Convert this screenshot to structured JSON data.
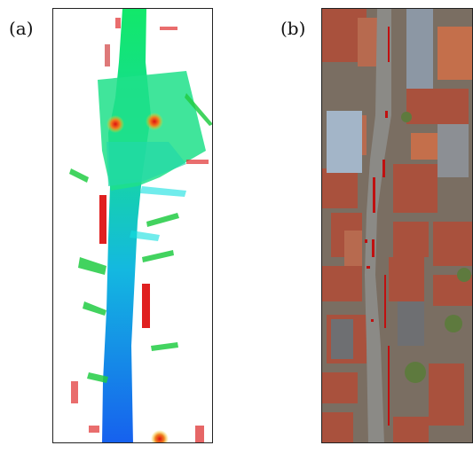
{
  "figure": {
    "panels": [
      {
        "label": "(a)",
        "kind": "point-cloud-height-map",
        "colors": {
          "ground_high": "#10e070",
          "ground_low": "#1060f0",
          "object": "#e01010",
          "background": "#ffffff"
        }
      },
      {
        "label": "(b)",
        "kind": "aerial-orthophoto",
        "colors": {
          "roof": "#a9513d",
          "street": "#8b8a86",
          "overlay": "#c01010"
        }
      }
    ]
  }
}
